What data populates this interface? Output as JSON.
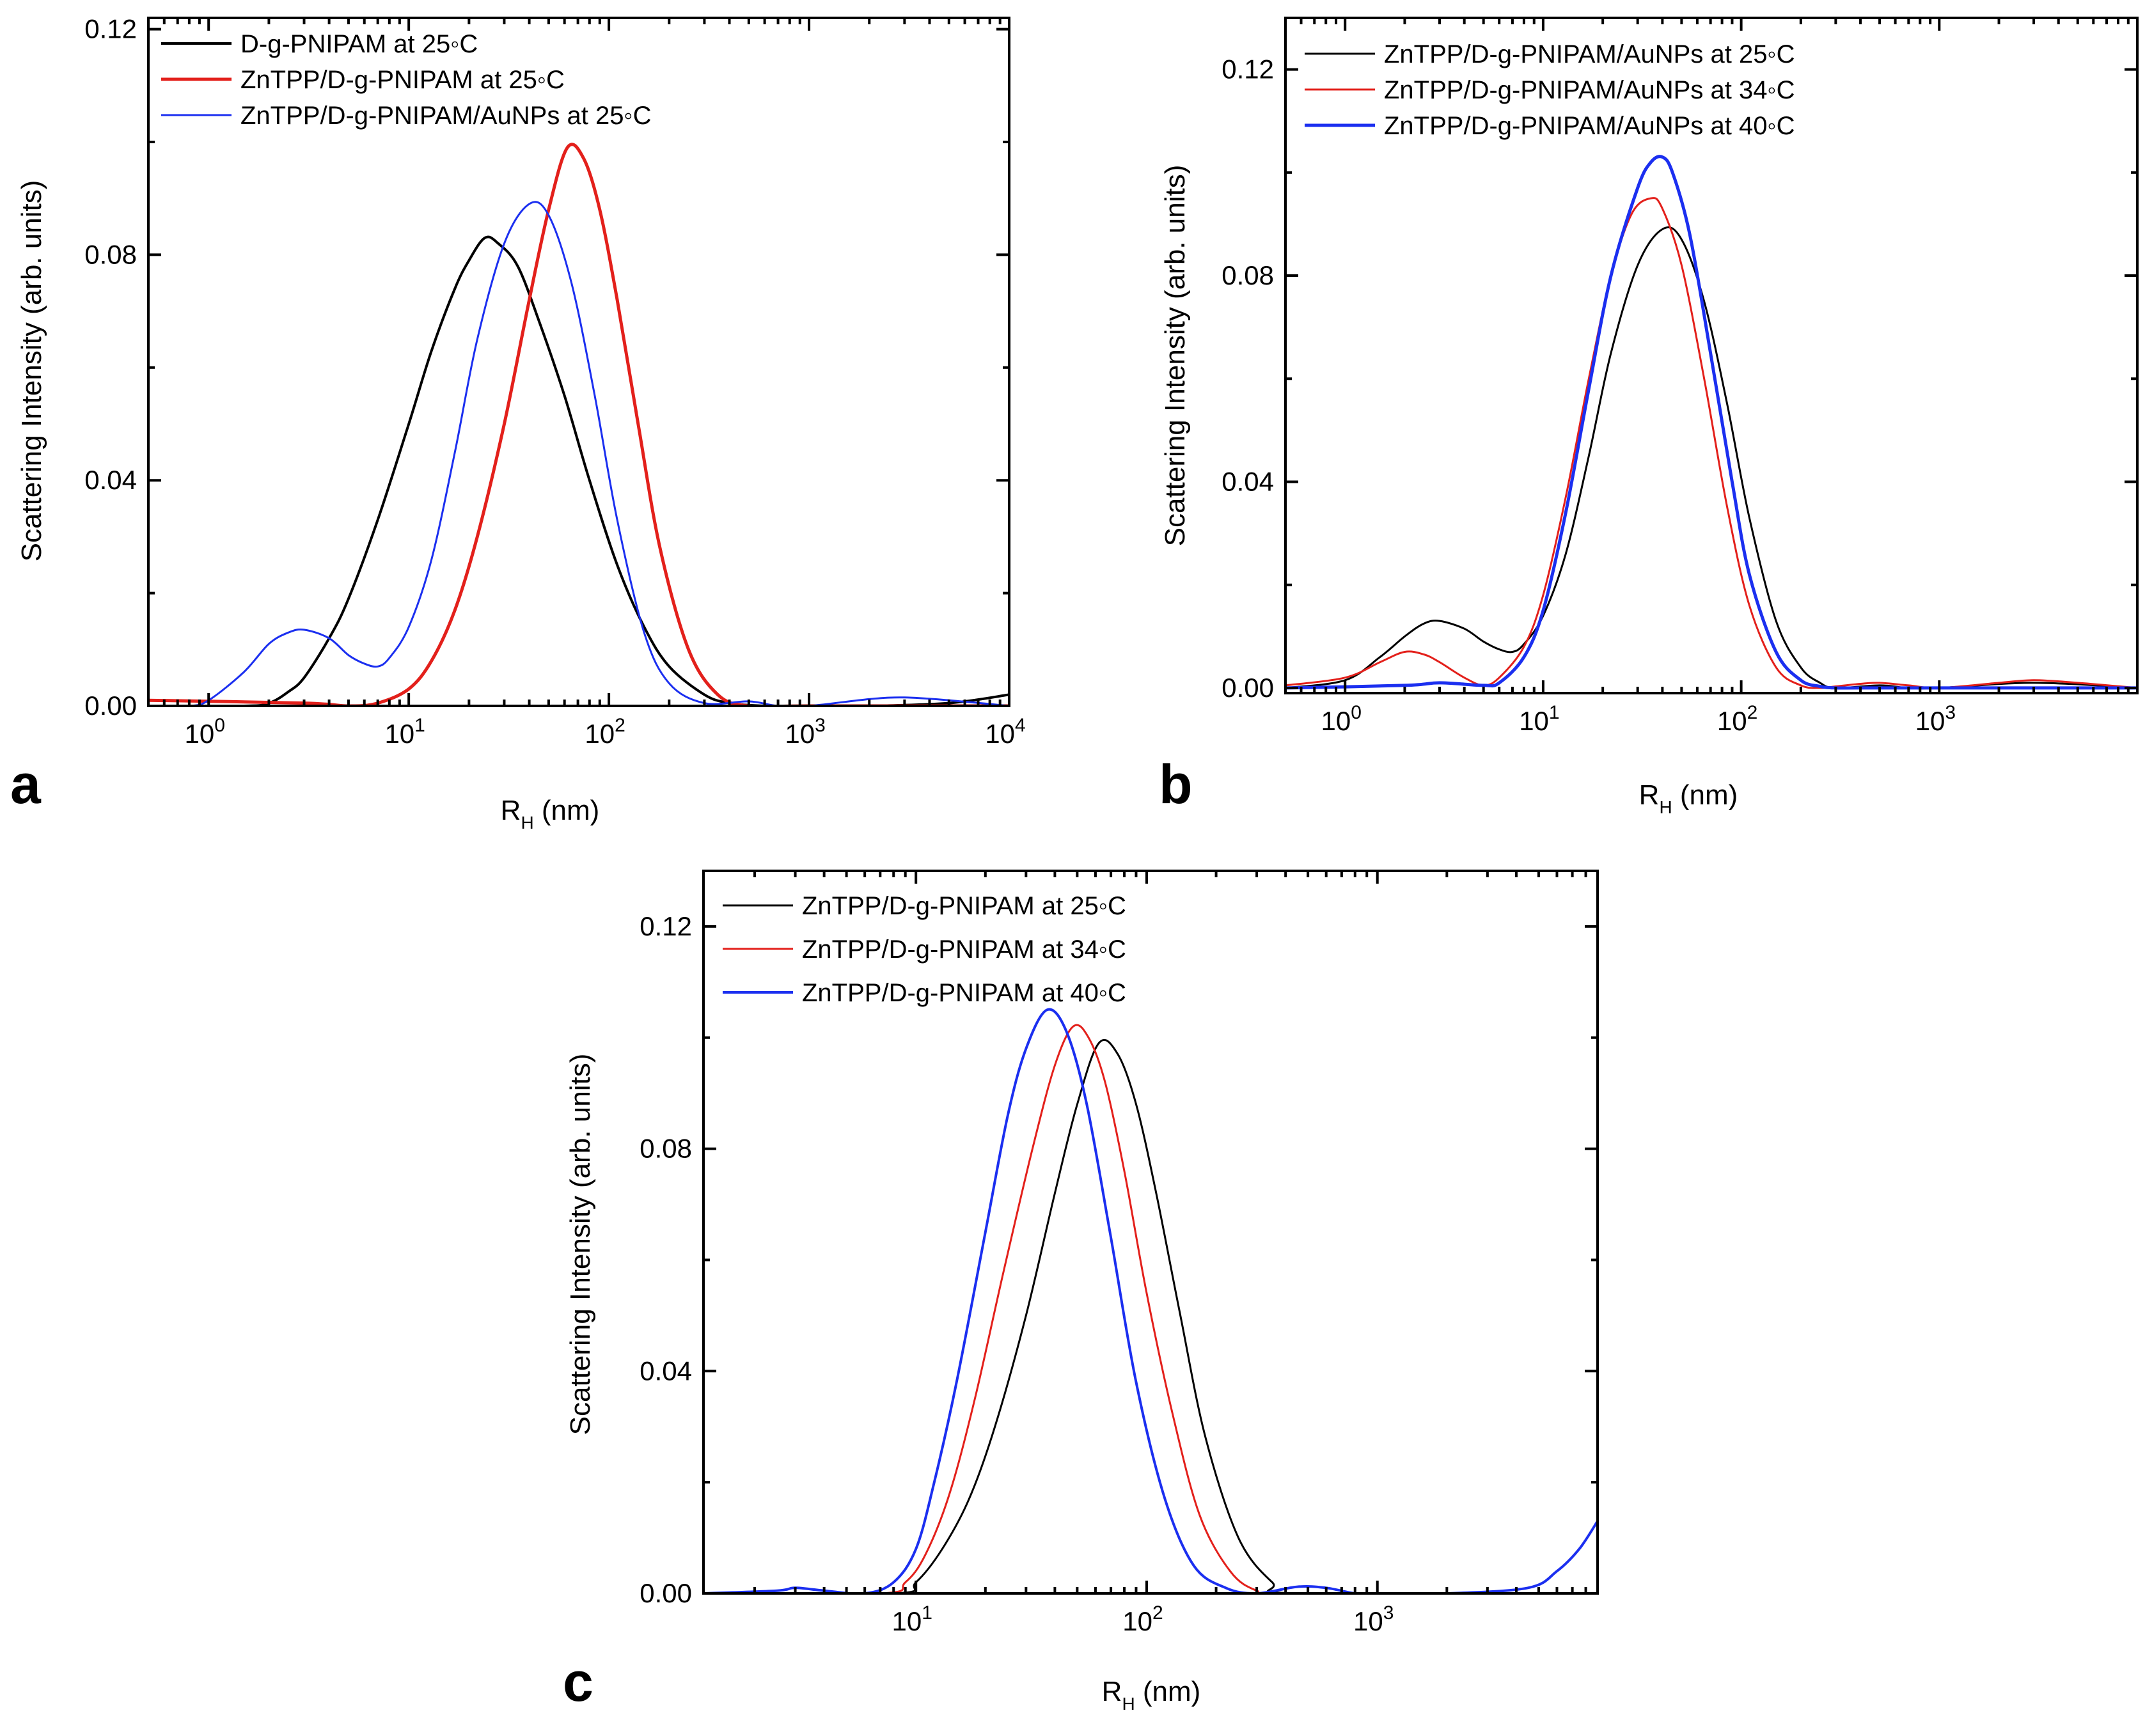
{
  "figure": {
    "panels": [
      {
        "letter": "a",
        "xlabel_main": "R",
        "xlabel_sub": "H",
        "xlabel_unit": " (nm)",
        "ylabel": "Scattering Intensity (arb. units)"
      },
      {
        "letter": "b",
        "xlabel_main": "R",
        "xlabel_sub": "H",
        "xlabel_unit": " (nm)",
        "ylabel": "Scattering Intensity (arb. units)"
      },
      {
        "letter": "c",
        "xlabel_main": "R",
        "xlabel_sub": "H",
        "xlabel_unit": " (nm)",
        "ylabel": "Scattering Intensity (arb. units)"
      }
    ]
  },
  "chart_data": [
    {
      "type": "line",
      "panel": "a",
      "xscale": "log",
      "xlim": [
        0.5,
        10000
      ],
      "ylim": [
        0,
        0.122
      ],
      "xlabel": "RH (nm)",
      "ylabel": "Scattering Intensity (arb. units)",
      "xticks": [
        {
          "base": "10",
          "exp": "0",
          "v": 1
        },
        {
          "base": "10",
          "exp": "1",
          "v": 10
        },
        {
          "base": "10",
          "exp": "2",
          "v": 100
        },
        {
          "base": "10",
          "exp": "3",
          "v": 1000
        },
        {
          "base": "10",
          "exp": "4",
          "v": 10000
        }
      ],
      "yticks": [
        {
          "label": "0.00",
          "v": 0
        },
        {
          "label": "0.04",
          "v": 0.04
        },
        {
          "label": "0.08",
          "v": 0.08
        },
        {
          "label": "0.12",
          "v": 0.12
        }
      ],
      "legend_position": "top-left",
      "series": [
        {
          "name": "D-g-PNIPAM at 25◦C",
          "color": "#000000",
          "width": 4,
          "x": [
            0.5,
            1.5,
            2.0,
            2.5,
            3.0,
            4.0,
            5.0,
            7.0,
            10,
            13,
            17,
            20,
            24,
            28,
            35,
            45,
            60,
            80,
            110,
            150,
            200,
            300,
            400,
            600,
            1000,
            2000,
            5000,
            10000
          ],
          "y": [
            0,
            0,
            0.0005,
            0.0025,
            0.005,
            0.012,
            0.019,
            0.033,
            0.05,
            0.063,
            0.074,
            0.079,
            0.083,
            0.082,
            0.078,
            0.068,
            0.055,
            0.04,
            0.025,
            0.014,
            0.007,
            0.002,
            0.0005,
            0,
            0,
            0,
            0.0005,
            0.002
          ]
        },
        {
          "name": "ZnTPP/D-g-PNIPAM at 25◦C",
          "color": "#e3201b",
          "width": 5,
          "x": [
            0.5,
            3,
            5,
            7,
            10,
            13,
            17,
            22,
            30,
            40,
            50,
            62,
            75,
            90,
            110,
            140,
            180,
            250,
            350,
            500,
            1000,
            10000
          ],
          "y": [
            0.001,
            0.0005,
            0,
            0.0005,
            0.003,
            0.008,
            0.017,
            0.03,
            0.05,
            0.072,
            0.088,
            0.099,
            0.097,
            0.088,
            0.072,
            0.05,
            0.028,
            0.01,
            0.002,
            0,
            0,
            0
          ]
        },
        {
          "name": "ZnTPP/D-g-PNIPAM/AuNPs at 25◦C",
          "color": "#1b2ff0",
          "width": 3,
          "x": [
            0.5,
            0.8,
            1.0,
            1.5,
            2.0,
            2.5,
            3.0,
            4.0,
            5.0,
            6.0,
            7.0,
            8.0,
            10,
            13,
            17,
            22,
            30,
            40,
            50,
            65,
            85,
            110,
            150,
            200,
            300,
            500,
            700,
            1000,
            2000,
            3000,
            5000,
            10000
          ],
          "y": [
            0,
            0,
            0.001,
            0.006,
            0.011,
            0.013,
            0.0135,
            0.012,
            0.009,
            0.0075,
            0.007,
            0.0085,
            0.014,
            0.026,
            0.045,
            0.065,
            0.082,
            0.089,
            0.087,
            0.075,
            0.055,
            0.033,
            0.013,
            0.004,
            0.0005,
            0.0008,
            0,
            0,
            0.0012,
            0.0015,
            0.001,
            0
          ]
        }
      ]
    },
    {
      "type": "line",
      "panel": "b",
      "xscale": "log",
      "xlim": [
        0.5,
        10000
      ],
      "ylim": [
        -0.001,
        0.13
      ],
      "xlabel": "RH (nm)",
      "ylabel": "Scattering Intensity (arb. units)",
      "xticks": [
        {
          "base": "10",
          "exp": "0",
          "v": 1
        },
        {
          "base": "10",
          "exp": "1",
          "v": 10
        },
        {
          "base": "10",
          "exp": "2",
          "v": 100
        },
        {
          "base": "10",
          "exp": "3",
          "v": 1000
        }
      ],
      "yticks": [
        {
          "label": "0.00",
          "v": 0
        },
        {
          "label": "0.04",
          "v": 0.04
        },
        {
          "label": "0.08",
          "v": 0.08
        },
        {
          "label": "0.12",
          "v": 0.12
        }
      ],
      "legend_position": "top-left",
      "series": [
        {
          "name": "ZnTPP/D-g-PNIPAM/AuNPs at 25◦C",
          "color": "#000000",
          "width": 3,
          "x": [
            0.5,
            1.0,
            1.5,
            2.0,
            2.5,
            3.0,
            4.0,
            5.0,
            6.0,
            7.0,
            8.0,
            10,
            13,
            17,
            22,
            30,
            40,
            50,
            65,
            85,
            110,
            150,
            200,
            250,
            300,
            500,
            700,
            1000,
            3000,
            10000
          ],
          "y": [
            0,
            0.0015,
            0.006,
            0.01,
            0.0125,
            0.013,
            0.0115,
            0.009,
            0.0075,
            0.007,
            0.0085,
            0.014,
            0.026,
            0.045,
            0.065,
            0.082,
            0.089,
            0.087,
            0.075,
            0.055,
            0.033,
            0.013,
            0.004,
            0.001,
            0,
            0.0005,
            0,
            0,
            0.001,
            0
          ]
        },
        {
          "name": "ZnTPP/D-g-PNIPAM/AuNPs at 34◦C",
          "color": "#e3201b",
          "width": 3,
          "x": [
            0.5,
            1.0,
            1.5,
            2.0,
            2.5,
            3.0,
            4.0,
            5.0,
            6.0,
            8.0,
            10,
            13,
            17,
            22,
            28,
            35,
            40,
            50,
            65,
            85,
            110,
            150,
            200,
            250,
            300,
            400,
            500,
            700,
            1000,
            2000,
            3000,
            5000,
            10000
          ],
          "y": [
            0.0005,
            0.002,
            0.005,
            0.007,
            0.0065,
            0.005,
            0.002,
            0.0005,
            0.002,
            0.008,
            0.018,
            0.037,
            0.06,
            0.08,
            0.092,
            0.095,
            0.093,
            0.082,
            0.06,
            0.035,
            0.016,
            0.004,
            0.0005,
            0,
            0.0003,
            0.0008,
            0.001,
            0.0005,
            0,
            0.001,
            0.0015,
            0.001,
            0
          ]
        },
        {
          "name": "ZnTPP/D-g-PNIPAM/AuNPs at 40◦C",
          "color": "#1b2ff0",
          "width": 5,
          "x": [
            0.5,
            2,
            3,
            5,
            6,
            8,
            10,
            13,
            17,
            22,
            30,
            35,
            40,
            45,
            55,
            70,
            90,
            110,
            150,
            200,
            250,
            300,
            400,
            1000,
            10000
          ],
          "y": [
            0,
            0.0005,
            0.001,
            0.0005,
            0.001,
            0.006,
            0.015,
            0.034,
            0.058,
            0.08,
            0.097,
            0.102,
            0.103,
            0.1,
            0.088,
            0.065,
            0.04,
            0.022,
            0.007,
            0.0015,
            0.0003,
            0,
            0,
            0,
            0
          ]
        }
      ]
    },
    {
      "type": "line",
      "panel": "c",
      "xscale": "log",
      "xlim": [
        1.2,
        9000
      ],
      "ylim": [
        0,
        0.13
      ],
      "xlabel": "RH (nm)",
      "ylabel": "Scattering Intensity (arb. units)",
      "xticks": [
        {
          "base": "10",
          "exp": "1",
          "v": 10
        },
        {
          "base": "10",
          "exp": "2",
          "v": 100
        },
        {
          "base": "10",
          "exp": "3",
          "v": 1000
        }
      ],
      "yticks": [
        {
          "label": "0.00",
          "v": 0
        },
        {
          "label": "0.04",
          "v": 0.04
        },
        {
          "label": "0.08",
          "v": 0.08
        },
        {
          "label": "0.12",
          "v": 0.12
        }
      ],
      "legend_position": "top-left",
      "series": [
        {
          "name": "ZnTPP/D-g-PNIPAM at 25◦C",
          "color": "#000000",
          "width": 3,
          "x": [
            1.2,
            8,
            10,
            13,
            17,
            22,
            30,
            40,
            50,
            62,
            75,
            90,
            110,
            140,
            180,
            250,
            350,
            450,
            9000
          ],
          "y": [
            0,
            0,
            0.002,
            0.008,
            0.017,
            0.03,
            0.05,
            0.072,
            0.088,
            0.099,
            0.097,
            0.088,
            0.072,
            0.05,
            0.028,
            0.01,
            0.002,
            0,
            0
          ]
        },
        {
          "name": "ZnTPP/D-g-PNIPAM at 34◦C",
          "color": "#e3201b",
          "width": 3,
          "x": [
            1.2,
            7,
            9,
            11,
            14,
            18,
            24,
            32,
            40,
            48,
            56,
            66,
            80,
            100,
            130,
            170,
            230,
            300,
            400,
            9000
          ],
          "y": [
            0,
            0,
            0.002,
            0.007,
            0.018,
            0.035,
            0.058,
            0.08,
            0.095,
            0.102,
            0.1,
            0.092,
            0.076,
            0.054,
            0.032,
            0.014,
            0.004,
            0.0005,
            0,
            0
          ]
        },
        {
          "name": "ZnTPP/D-g-PNIPAM at 40◦C",
          "color": "#1b2ff0",
          "width": 4,
          "x": [
            1.2,
            2.5,
            3.0,
            4.0,
            6.0,
            8.0,
            10,
            12,
            15,
            20,
            25,
            30,
            37,
            45,
            55,
            70,
            90,
            120,
            160,
            220,
            300,
            450,
            600,
            800,
            1000,
            2000,
            4500,
            6000,
            7500,
            9000
          ],
          "y": [
            0,
            0.0005,
            0.001,
            0.0005,
            0,
            0.002,
            0.008,
            0.02,
            0.038,
            0.065,
            0.086,
            0.098,
            0.105,
            0.101,
            0.088,
            0.064,
            0.038,
            0.017,
            0.005,
            0.001,
            0,
            0.0012,
            0.001,
            0,
            0,
            0,
            0.001,
            0.004,
            0.008,
            0.013
          ]
        }
      ]
    }
  ]
}
